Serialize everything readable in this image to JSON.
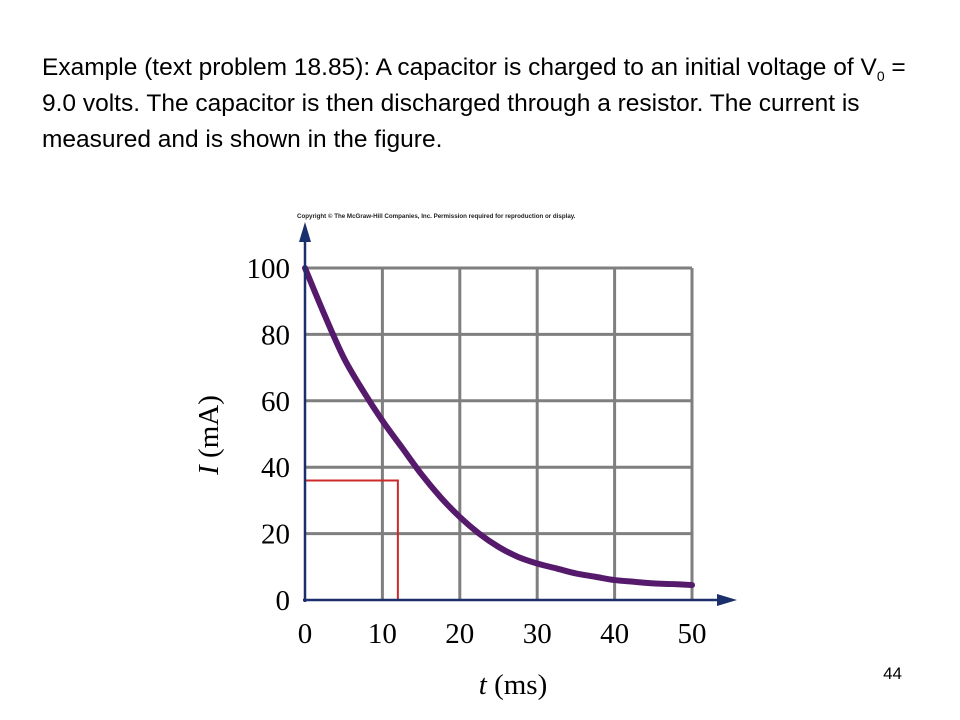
{
  "problem": {
    "part1": "Example (text problem 18.85): A capacitor is charged to an initial voltage of V",
    "subscript": "0",
    "part2": " = 9.0 volts.  The capacitor is then discharged through a resistor.  The current is measured and is shown in the figure."
  },
  "copyright": "Copyright © The McGraw-Hill Companies, Inc. Permission required for reproduction or display.",
  "slide_number": "44",
  "colors": {
    "curve": "#551a6b",
    "marker": "#cc2a2a",
    "grid": "#7f7f7f",
    "axis": "#1a2f6b"
  },
  "chart_data": {
    "type": "line",
    "title": "",
    "xlabel": {
      "symbol": "t",
      "unit": " (ms)"
    },
    "ylabel": {
      "symbol": "I",
      "unit": " (mA)"
    },
    "xlim": [
      0,
      50
    ],
    "ylim": [
      0,
      100
    ],
    "x_ticks": [
      "0",
      "10",
      "20",
      "30",
      "40",
      "50"
    ],
    "y_ticks": [
      "0",
      "20",
      "40",
      "60",
      "80",
      "100"
    ],
    "grid": true,
    "series": [
      {
        "x": [
          0,
          2.5,
          5,
          7.5,
          10,
          12.5,
          15,
          17.5,
          20,
          22.5,
          25,
          27.5,
          30,
          32.5,
          35,
          37.5,
          40,
          42.5,
          45,
          47.5,
          50
        ],
        "y": [
          100,
          86,
          73,
          63,
          54,
          46,
          38,
          31,
          25,
          20,
          16,
          13,
          11,
          9.5,
          8,
          7,
          6,
          5.5,
          5,
          4.8,
          4.5
        ]
      }
    ],
    "annotation": {
      "x": 12,
      "y": 36
    }
  }
}
